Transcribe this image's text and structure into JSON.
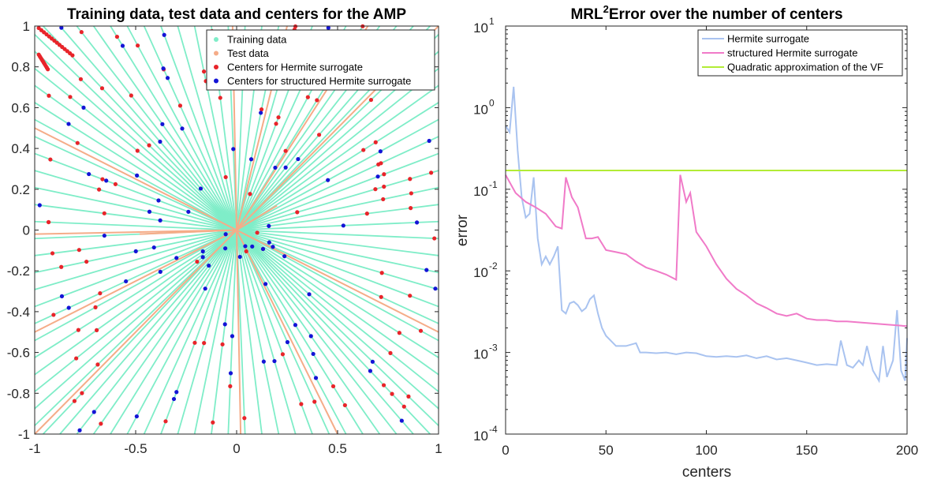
{
  "chart_data": [
    {
      "type": "scatter",
      "title": "Training data, test data and centers for the AMP",
      "xlim": [
        -1,
        1
      ],
      "ylim": [
        -1,
        1
      ],
      "xticks": [
        "-1",
        "-0.5",
        "0",
        "0.5",
        "1"
      ],
      "yticks": [
        "1",
        "0.8",
        "0.6",
        "0.4",
        "0.2",
        "0",
        "-0.2",
        "-0.4",
        "-0.6",
        "-0.8",
        "-1"
      ],
      "grid": false,
      "legend_position": "top-right",
      "series": [
        {
          "name": "Training data",
          "color": "#7fedc8",
          "marker": "line",
          "description_rays": 96
        },
        {
          "name": "Test data",
          "color": "#f5ac88",
          "marker": "line",
          "rays": [
            [
              0.5,
              -1
            ],
            [
              -1,
              -0.5
            ],
            [
              0.25,
              1
            ],
            [
              -0.48,
              -0.02
            ],
            [
              1,
              1
            ],
            [
              -1,
              0.5
            ],
            [
              -0.02,
              1
            ],
            [
              0.65,
              1
            ],
            [
              1,
              -0.5
            ],
            [
              -1,
              -1
            ],
            [
              0.02,
              -1
            ],
            [
              -1,
              -0.02
            ],
            [
              0.2,
              0.12
            ]
          ]
        },
        {
          "name": "Centers for Hermite surrogate",
          "color": "#e8242a",
          "marker": "dot"
        },
        {
          "name": "Centers for structured Hermite surrogate",
          "color": "#1414d6",
          "marker": "dot"
        }
      ]
    },
    {
      "type": "line",
      "title": "MRL² Error over the number of centers",
      "title_main": "MRL",
      "title_sup": "2",
      "title_rest": "Error over the number of centers",
      "xlabel": "centers",
      "ylabel": "error",
      "xlim": [
        0,
        200
      ],
      "ylim": [
        0.0001,
        10
      ],
      "yscale": "log",
      "xticks": [
        "0",
        "50",
        "100",
        "150",
        "200"
      ],
      "yticks": [
        {
          "base": "10",
          "exp": "1",
          "value": 10
        },
        {
          "base": "10",
          "exp": "0",
          "value": 1
        },
        {
          "base": "10",
          "exp": "-1",
          "value": 0.1
        },
        {
          "base": "10",
          "exp": "-2",
          "value": 0.01
        },
        {
          "base": "10",
          "exp": "-3",
          "value": 0.001
        },
        {
          "base": "10",
          "exp": "-4",
          "value": 0.0001
        }
      ],
      "grid": false,
      "legend_position": "top-right",
      "series": [
        {
          "name": "Hermite surrogate",
          "color": "#a9c3f0",
          "x": [
            0,
            2,
            4,
            6,
            8,
            10,
            12,
            14,
            16,
            18,
            20,
            22,
            24,
            26,
            28,
            30,
            32,
            34,
            36,
            38,
            40,
            42,
            44,
            46,
            48,
            50,
            55,
            60,
            65,
            67,
            70,
            75,
            80,
            85,
            90,
            95,
            100,
            105,
            110,
            115,
            120,
            125,
            130,
            135,
            140,
            145,
            150,
            155,
            160,
            165,
            167,
            170,
            173,
            176,
            178,
            180,
            183,
            186,
            188,
            190,
            193,
            195,
            197,
            199,
            200
          ],
          "y": [
            0.6,
            0.5,
            1.8,
            0.3,
            0.08,
            0.045,
            0.05,
            0.14,
            0.025,
            0.012,
            0.015,
            0.012,
            0.015,
            0.02,
            0.0033,
            0.003,
            0.004,
            0.0042,
            0.0038,
            0.0032,
            0.0035,
            0.0045,
            0.005,
            0.003,
            0.002,
            0.0016,
            0.0012,
            0.0012,
            0.0013,
            0.001,
            0.001,
            0.00098,
            0.001,
            0.00095,
            0.001,
            0.00098,
            0.0009,
            0.00088,
            0.0009,
            0.00088,
            0.00092,
            0.00085,
            0.0009,
            0.00082,
            0.00085,
            0.0008,
            0.00075,
            0.0007,
            0.00072,
            0.0007,
            0.0014,
            0.0007,
            0.00065,
            0.0008,
            0.0007,
            0.0012,
            0.0006,
            0.00045,
            0.0012,
            0.0005,
            0.0008,
            0.0033,
            0.0006,
            0.00045,
            0.0015
          ]
        },
        {
          "name": "structured Hermite surrogate",
          "color": "#f07ac8",
          "x": [
            0,
            5,
            10,
            15,
            20,
            25,
            28,
            30,
            33,
            36,
            40,
            43,
            46,
            50,
            55,
            60,
            65,
            70,
            75,
            80,
            85,
            87,
            90,
            92,
            95,
            100,
            105,
            110,
            115,
            120,
            125,
            130,
            135,
            140,
            145,
            150,
            155,
            160,
            165,
            170,
            180,
            190,
            200
          ],
          "y": [
            0.15,
            0.09,
            0.07,
            0.06,
            0.05,
            0.035,
            0.033,
            0.14,
            0.08,
            0.06,
            0.025,
            0.025,
            0.026,
            0.018,
            0.017,
            0.016,
            0.013,
            0.011,
            0.01,
            0.009,
            0.0078,
            0.15,
            0.07,
            0.09,
            0.03,
            0.02,
            0.012,
            0.008,
            0.006,
            0.005,
            0.004,
            0.0035,
            0.003,
            0.0028,
            0.003,
            0.0026,
            0.0025,
            0.0025,
            0.0024,
            0.0024,
            0.0023,
            0.0022,
            0.0021
          ]
        },
        {
          "name": "Quadratic approximation of the VF",
          "color": "#b2ec36",
          "x": [
            0,
            200
          ],
          "y": [
            0.17,
            0.17
          ]
        }
      ]
    }
  ]
}
